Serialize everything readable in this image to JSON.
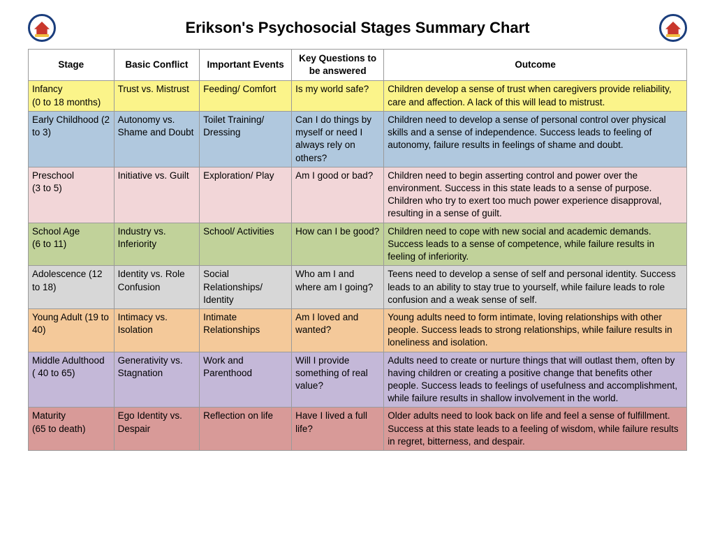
{
  "title": "Erikson's Psychosocial Stages Summary Chart",
  "columns": [
    "Stage",
    "Basic Conflict",
    "Important Events",
    "Key Questions to be answered",
    "Outcome"
  ],
  "col_widths": [
    "13%",
    "13%",
    "14%",
    "14%",
    "46%"
  ],
  "header_bg": "#ffffff",
  "border_color": "#9a9a9a",
  "text_color": "#000000",
  "title_fontsize": 22,
  "body_fontsize": 13.5,
  "rows": [
    {
      "bg": "#fbf48a",
      "stage": "Infancy\n(0 to 18 months)",
      "conflict": "Trust vs. Mistrust",
      "events": "Feeding/ Comfort",
      "questions": "Is my world safe?",
      "outcome": "Children develop a sense of trust when caregivers provide reliability, care and affection. A lack of this will lead to mistrust."
    },
    {
      "bg": "#b0c8de",
      "stage": "Early Childhood (2 to 3)",
      "conflict": "Autonomy vs. Shame and Doubt",
      "events": "Toilet Training/ Dressing",
      "questions": "Can I do things by myself or need I always rely on others?",
      "outcome": "Children need to develop a sense of personal control over physical skills and a sense of independence. Success leads to feeling of autonomy, failure results in feelings of shame and doubt."
    },
    {
      "bg": "#f2d6d8",
      "stage": "Preschool\n(3 to 5)",
      "conflict": "Initiative vs. Guilt",
      "events": "Exploration/ Play",
      "questions": "Am I good or bad?",
      "outcome": "Children need to begin asserting control and power over the environment. Success in this state leads to a sense of purpose. Children who try to exert too much power experience disapproval, resulting in a sense of guilt."
    },
    {
      "bg": "#c1d29a",
      "stage": "School Age\n(6 to 11)",
      "conflict": "Industry vs. Inferiority",
      "events": "School/ Activities",
      "questions": "How can I be good?",
      "outcome": "Children need to cope with new social and academic demands. Success leads to a sense of competence, while failure results in feeling of inferiority."
    },
    {
      "bg": "#d7d7d7",
      "stage": "Adolescence (12 to 18)",
      "conflict": "Identity vs. Role Confusion",
      "events": "Social Relationships/ Identity",
      "questions": "Who am I and where am I going?",
      "outcome": "Teens need to develop a sense of self and personal identity. Success leads to an ability to stay true to yourself, while failure leads to role confusion and a weak sense of self."
    },
    {
      "bg": "#f4c99a",
      "stage": "Young Adult (19 to 40)",
      "conflict": "Intimacy vs. Isolation",
      "events": "Intimate Relationships",
      "questions": "Am I loved and wanted?",
      "outcome": "Young adults need to form intimate, loving relationships with other people. Success leads to strong relationships, while failure results in loneliness and isolation."
    },
    {
      "bg": "#c4b8d8",
      "stage": "Middle Adulthood ( 40 to 65)",
      "conflict": "Generativity vs. Stagnation",
      "events": "Work and Parenthood",
      "questions": "Will I provide something of real value?",
      "outcome": "Adults need to create or nurture things that will outlast them, often by having children or creating a positive change that benefits other people. Success leads to feelings of usefulness and accomplishment, while failure results in shallow involvement in the world."
    },
    {
      "bg": "#d89a98",
      "stage": "Maturity\n(65 to death)",
      "conflict": "Ego Identity vs. Despair",
      "events": "Reflection on life",
      "questions": "Have I lived a full life?",
      "outcome": "Older adults need to look back on life and feel a sense of fulfillment. Success at this state leads to a feeling of wisdom, while failure results in regret, bitterness, and despair."
    }
  ]
}
